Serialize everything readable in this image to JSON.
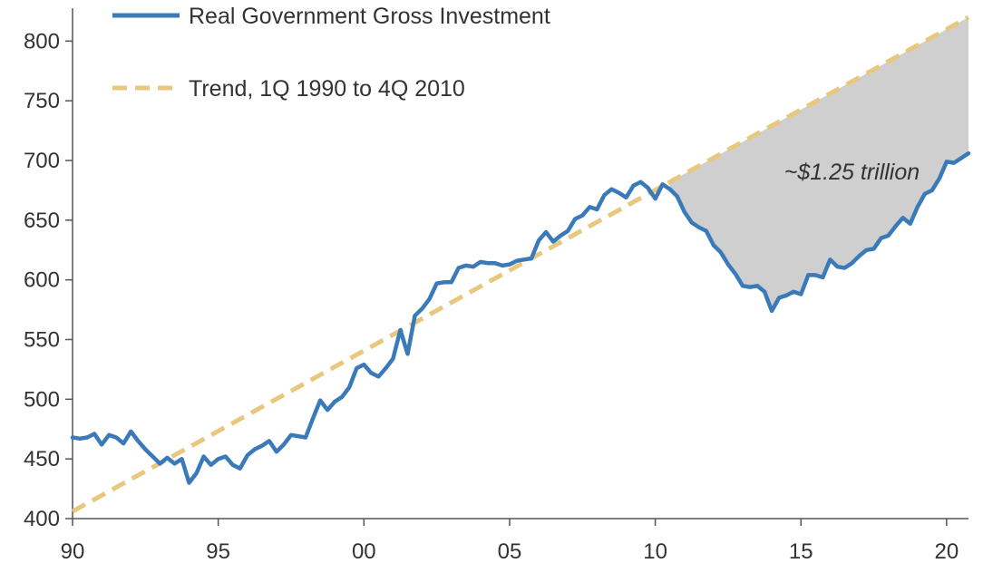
{
  "chart_data": {
    "type": "line",
    "title": "",
    "xlabel": "",
    "ylabel": "",
    "xlim": [
      1990,
      2020.75
    ],
    "ylim": [
      400,
      820
    ],
    "y_ticks": [
      400,
      450,
      500,
      550,
      600,
      650,
      700,
      750,
      800
    ],
    "x_ticks": [
      {
        "value": 1990,
        "label": "90"
      },
      {
        "value": 1995,
        "label": "95"
      },
      {
        "value": 2000,
        "label": "00"
      },
      {
        "value": 2005,
        "label": "05"
      },
      {
        "value": 2010,
        "label": "10"
      },
      {
        "value": 2015,
        "label": "15"
      },
      {
        "value": 2020,
        "label": "20"
      }
    ],
    "grid": false,
    "legend_position": "top-left",
    "colors": {
      "actual": "#3a7ab8",
      "trend": "#e8c77e",
      "gap": "#cfcfcf",
      "axis": "#555555"
    },
    "series": [
      {
        "name": "Real Government Gross Investment",
        "style": "solid",
        "x": [
          1990.0,
          1990.25,
          1990.5,
          1990.75,
          1991.0,
          1991.25,
          1991.5,
          1991.75,
          1992.0,
          1992.25,
          1992.5,
          1992.75,
          1993.0,
          1993.25,
          1993.5,
          1993.75,
          1994.0,
          1994.25,
          1994.5,
          1994.75,
          1995.0,
          1995.25,
          1995.5,
          1995.75,
          1996.0,
          1996.25,
          1996.5,
          1996.75,
          1997.0,
          1997.25,
          1997.5,
          1997.75,
          1998.0,
          1998.25,
          1998.5,
          1998.75,
          1999.0,
          1999.25,
          1999.5,
          1999.75,
          2000.0,
          2000.25,
          2000.5,
          2000.75,
          2001.0,
          2001.25,
          2001.5,
          2001.75,
          2002.0,
          2002.25,
          2002.5,
          2002.75,
          2003.0,
          2003.25,
          2003.5,
          2003.75,
          2004.0,
          2004.25,
          2004.5,
          2004.75,
          2005.0,
          2005.25,
          2005.5,
          2005.75,
          2006.0,
          2006.25,
          2006.5,
          2006.75,
          2007.0,
          2007.25,
          2007.5,
          2007.75,
          2008.0,
          2008.25,
          2008.5,
          2008.75,
          2009.0,
          2009.25,
          2009.5,
          2009.75,
          2010.0,
          2010.25,
          2010.5,
          2010.75,
          2011.0,
          2011.25,
          2011.5,
          2011.75,
          2012.0,
          2012.25,
          2012.5,
          2012.75,
          2013.0,
          2013.25,
          2013.5,
          2013.75,
          2014.0,
          2014.25,
          2014.5,
          2014.75,
          2015.0,
          2015.25,
          2015.5,
          2015.75,
          2016.0,
          2016.25,
          2016.5,
          2016.75,
          2017.0,
          2017.25,
          2017.5,
          2017.75,
          2018.0,
          2018.25,
          2018.5,
          2018.75,
          2019.0,
          2019.25,
          2019.5,
          2019.75,
          2020.0,
          2020.25,
          2020.5,
          2020.75
        ],
        "values": [
          468,
          467,
          468,
          471,
          462,
          470,
          468,
          463,
          473,
          465,
          458,
          452,
          446,
          451,
          446,
          450,
          430,
          438,
          452,
          445,
          450,
          452,
          445,
          442,
          453,
          458,
          461,
          465,
          456,
          462,
          470,
          469,
          468,
          484,
          499,
          491,
          498,
          502,
          510,
          526,
          529,
          522,
          519,
          526,
          534,
          558,
          538,
          570,
          576,
          584,
          597,
          598,
          598,
          610,
          612,
          611,
          615,
          614,
          614,
          612,
          613,
          616,
          617,
          618,
          633,
          640,
          632,
          637,
          641,
          651,
          654,
          661,
          659,
          671,
          676,
          673,
          669,
          679,
          682,
          677,
          668,
          680,
          676,
          670,
          657,
          648,
          644,
          641,
          629,
          623,
          613,
          605,
          595,
          594,
          595,
          590,
          574,
          585,
          587,
          590,
          588,
          604,
          604,
          602,
          617,
          611,
          610,
          614,
          620,
          625,
          626,
          635,
          637,
          645,
          652,
          647,
          661,
          672,
          675,
          685,
          699,
          698,
          702,
          706
        ]
      },
      {
        "name": "Trend, 1Q 1990 to 4Q 2010",
        "style": "dashed",
        "x": [
          1990.0,
          2020.75
        ],
        "values": [
          406,
          820
        ]
      }
    ],
    "annotations": [
      {
        "text": "~$1.25 trillion",
        "x": 2016.75,
        "y": 690
      }
    ]
  }
}
